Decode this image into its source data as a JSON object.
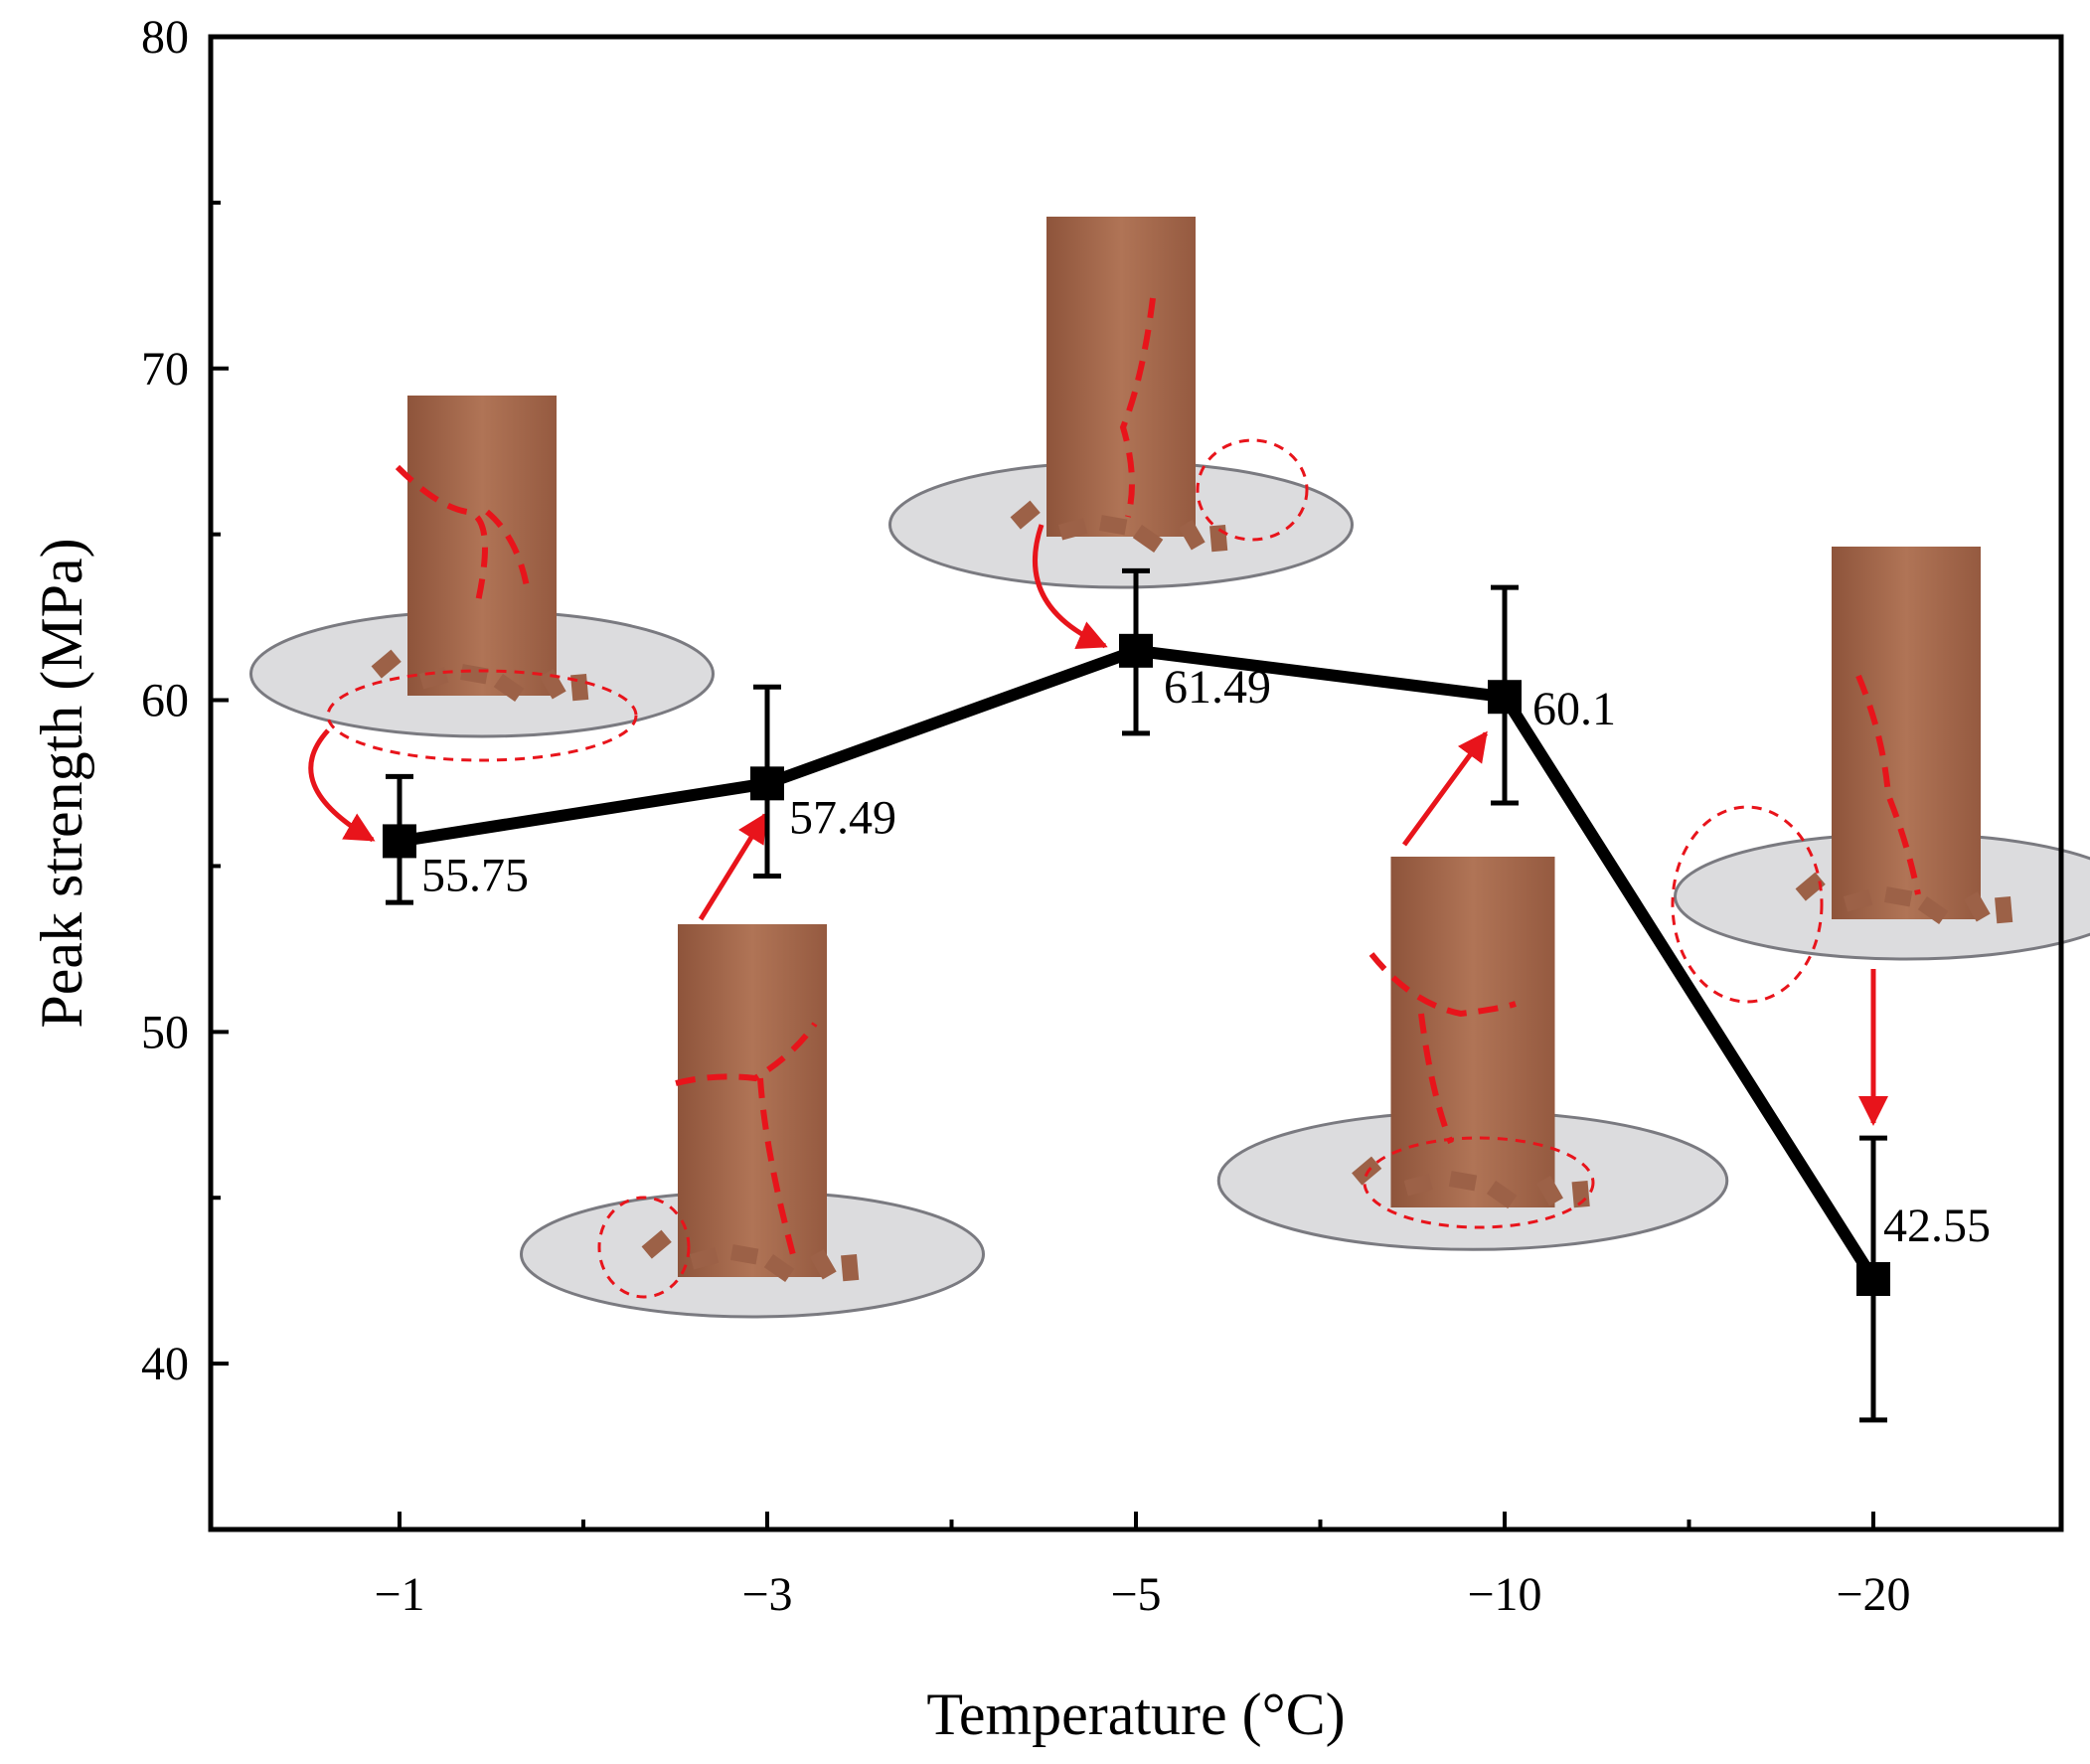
{
  "chart_data": {
    "type": "line",
    "xlabel": "Temperature (°C)",
    "ylabel": "Peak strength (MPa)",
    "categories": [
      "−1",
      "−3",
      "−5",
      "−10",
      "−20"
    ],
    "ylim": [
      35,
      80
    ],
    "yticks": [
      40,
      50,
      60,
      70,
      80
    ],
    "series": [
      {
        "values": [
          55.75,
          57.49,
          61.49,
          60.1,
          42.55
        ],
        "error_low": [
          53.9,
          54.7,
          59.0,
          56.9,
          38.3
        ],
        "error_high": [
          57.7,
          60.4,
          63.9,
          63.4,
          46.8
        ],
        "labels": [
          "55.75",
          "57.49",
          "61.49",
          "60.1",
          "42.55"
        ],
        "color": "#000000",
        "marker": "square"
      }
    ],
    "annotation_color": "#e8141b",
    "specimen_color": "#a86a4e",
    "grid": false
  }
}
